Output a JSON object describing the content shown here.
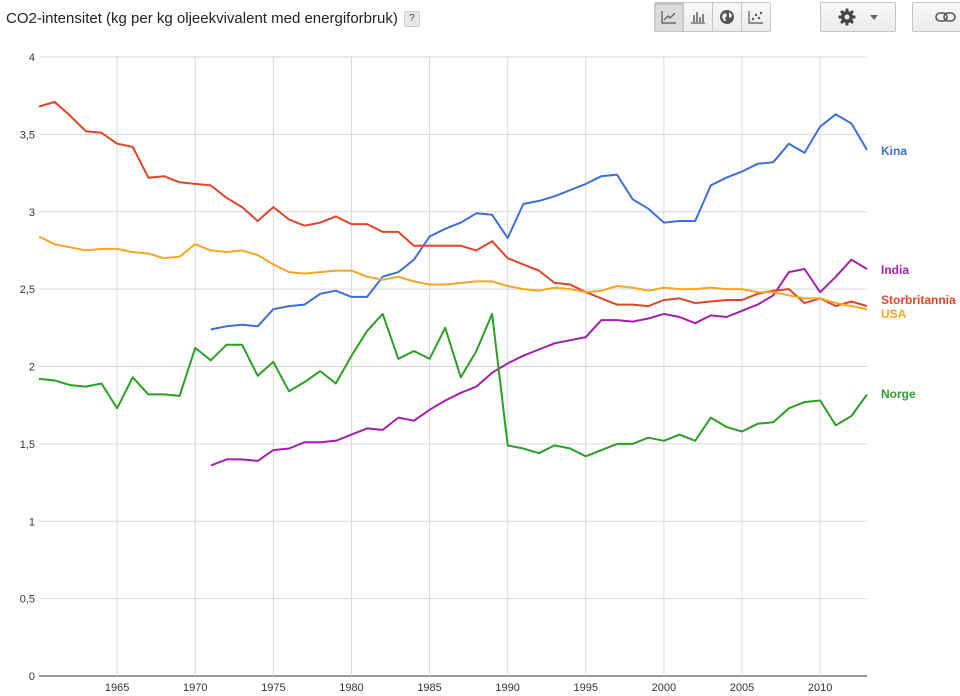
{
  "title": "CO2-intensitet (kg per kg oljeekvivalent med energiforbruk)",
  "help": "?",
  "toolbar": {
    "buttons": [
      {
        "name": "line-chart-button",
        "icon": "line-chart-icon",
        "active": true
      },
      {
        "name": "bar-chart-button",
        "icon": "bar-chart-icon",
        "active": false
      },
      {
        "name": "map-button",
        "icon": "globe-icon",
        "active": false
      },
      {
        "name": "scatter-button",
        "icon": "scatter-icon",
        "active": false
      }
    ],
    "settings_icon": "gear-icon",
    "dropdown_icon": "caret-down-icon",
    "link_icon": "link-icon"
  },
  "chart_data": {
    "type": "line",
    "title": "CO2-intensitet (kg per kg oljeekvivalent med energiforbruk)",
    "xlabel": "",
    "ylabel": "",
    "xlim": [
      1960,
      2013
    ],
    "ylim": [
      0,
      4
    ],
    "yticks": [
      0,
      0.5,
      1,
      1.5,
      2,
      2.5,
      3,
      3.5,
      4
    ],
    "ytick_labels": [
      "0",
      "0,5",
      "1",
      "1,5",
      "2",
      "2,5",
      "3",
      "3,5",
      "4"
    ],
    "xticks": [
      1965,
      1970,
      1975,
      1980,
      1985,
      1990,
      1995,
      2000,
      2005,
      2010
    ],
    "grid": true,
    "legend": "inline-right",
    "series": [
      {
        "name": "Kina",
        "color": "#3d6fd6",
        "x": [
          1971,
          1972,
          1973,
          1974,
          1975,
          1976,
          1977,
          1978,
          1979,
          1980,
          1981,
          1982,
          1983,
          1984,
          1985,
          1986,
          1987,
          1988,
          1989,
          1990,
          1991,
          1992,
          1993,
          1994,
          1995,
          1996,
          1997,
          1998,
          1999,
          2000,
          2001,
          2002,
          2003,
          2004,
          2005,
          2006,
          2007,
          2008,
          2009,
          2010,
          2011,
          2012,
          2013
        ],
        "y": [
          2.24,
          2.26,
          2.27,
          2.26,
          2.37,
          2.39,
          2.4,
          2.47,
          2.49,
          2.45,
          2.45,
          2.58,
          2.61,
          2.69,
          2.84,
          2.89,
          2.93,
          2.99,
          2.98,
          2.83,
          3.05,
          3.07,
          3.1,
          3.14,
          3.18,
          3.23,
          3.24,
          3.08,
          3.02,
          2.93,
          2.94,
          2.94,
          3.17,
          3.22,
          3.26,
          3.31,
          3.32,
          3.44,
          3.38,
          3.55,
          3.63,
          3.57,
          3.4
        ]
      },
      {
        "name": "India",
        "color": "#a21fb0",
        "x": [
          1971,
          1972,
          1973,
          1974,
          1975,
          1976,
          1977,
          1978,
          1979,
          1980,
          1981,
          1982,
          1983,
          1984,
          1985,
          1986,
          1987,
          1988,
          1989,
          1990,
          1991,
          1992,
          1993,
          1994,
          1995,
          1996,
          1997,
          1998,
          1999,
          2000,
          2001,
          2002,
          2003,
          2004,
          2005,
          2006,
          2007,
          2008,
          2009,
          2010,
          2011,
          2012,
          2013
        ],
        "y": [
          1.36,
          1.4,
          1.4,
          1.39,
          1.46,
          1.47,
          1.51,
          1.51,
          1.52,
          1.56,
          1.6,
          1.59,
          1.67,
          1.65,
          1.72,
          1.78,
          1.83,
          1.87,
          1.96,
          2.02,
          2.07,
          2.11,
          2.15,
          2.17,
          2.19,
          2.3,
          2.3,
          2.29,
          2.31,
          2.34,
          2.32,
          2.28,
          2.33,
          2.32,
          2.36,
          2.4,
          2.46,
          2.61,
          2.63,
          2.48,
          2.58,
          2.69,
          2.63
        ]
      },
      {
        "name": "Storbritannia",
        "color": "#e0452a",
        "x": [
          1960,
          1961,
          1962,
          1963,
          1964,
          1965,
          1966,
          1967,
          1968,
          1969,
          1970,
          1971,
          1972,
          1973,
          1974,
          1975,
          1976,
          1977,
          1978,
          1979,
          1980,
          1981,
          1982,
          1983,
          1984,
          1985,
          1986,
          1987,
          1988,
          1989,
          1990,
          1991,
          1992,
          1993,
          1994,
          1995,
          1996,
          1997,
          1998,
          1999,
          2000,
          2001,
          2002,
          2003,
          2004,
          2005,
          2006,
          2007,
          2008,
          2009,
          2010,
          2011,
          2012,
          2013
        ],
        "y": [
          3.68,
          3.71,
          3.62,
          3.52,
          3.51,
          3.44,
          3.42,
          3.22,
          3.23,
          3.19,
          3.18,
          3.17,
          3.09,
          3.03,
          2.94,
          3.03,
          2.95,
          2.91,
          2.93,
          2.97,
          2.92,
          2.92,
          2.87,
          2.87,
          2.78,
          2.78,
          2.78,
          2.78,
          2.75,
          2.81,
          2.7,
          2.66,
          2.62,
          2.54,
          2.53,
          2.48,
          2.44,
          2.4,
          2.4,
          2.39,
          2.43,
          2.44,
          2.41,
          2.42,
          2.43,
          2.43,
          2.47,
          2.49,
          2.5,
          2.41,
          2.44,
          2.39,
          2.42,
          2.39
        ]
      },
      {
        "name": "USA",
        "color": "#f6a623",
        "x": [
          1960,
          1961,
          1962,
          1963,
          1964,
          1965,
          1966,
          1967,
          1968,
          1969,
          1970,
          1971,
          1972,
          1973,
          1974,
          1975,
          1976,
          1977,
          1978,
          1979,
          1980,
          1981,
          1982,
          1983,
          1984,
          1985,
          1986,
          1987,
          1988,
          1989,
          1990,
          1991,
          1992,
          1993,
          1994,
          1995,
          1996,
          1997,
          1998,
          1999,
          2000,
          2001,
          2002,
          2003,
          2004,
          2005,
          2006,
          2007,
          2008,
          2009,
          2010,
          2011,
          2012,
          2013
        ],
        "y": [
          2.84,
          2.79,
          2.77,
          2.75,
          2.76,
          2.76,
          2.74,
          2.73,
          2.7,
          2.71,
          2.79,
          2.75,
          2.74,
          2.75,
          2.72,
          2.66,
          2.61,
          2.6,
          2.61,
          2.62,
          2.62,
          2.58,
          2.56,
          2.58,
          2.55,
          2.53,
          2.53,
          2.54,
          2.55,
          2.55,
          2.52,
          2.5,
          2.49,
          2.51,
          2.5,
          2.48,
          2.49,
          2.52,
          2.51,
          2.49,
          2.51,
          2.5,
          2.5,
          2.51,
          2.5,
          2.5,
          2.48,
          2.48,
          2.46,
          2.44,
          2.44,
          2.41,
          2.39,
          2.37
        ]
      },
      {
        "name": "Norge",
        "color": "#2c9f26",
        "x": [
          1960,
          1961,
          1962,
          1963,
          1964,
          1965,
          1966,
          1967,
          1968,
          1969,
          1970,
          1971,
          1972,
          1973,
          1974,
          1975,
          1976,
          1977,
          1978,
          1979,
          1980,
          1981,
          1982,
          1983,
          1984,
          1985,
          1986,
          1987,
          1988,
          1989,
          1990,
          1991,
          1992,
          1993,
          1994,
          1995,
          1996,
          1997,
          1998,
          1999,
          2000,
          2001,
          2002,
          2003,
          2004,
          2005,
          2006,
          2007,
          2008,
          2009,
          2010,
          2011,
          2012,
          2013
        ],
        "y": [
          1.92,
          1.91,
          1.88,
          1.87,
          1.89,
          1.73,
          1.93,
          1.82,
          1.82,
          1.81,
          2.12,
          2.04,
          2.14,
          2.14,
          1.94,
          2.03,
          1.84,
          1.9,
          1.97,
          1.89,
          2.07,
          2.23,
          2.34,
          2.05,
          2.1,
          2.05,
          2.25,
          1.93,
          2.1,
          2.34,
          1.49,
          1.47,
          1.44,
          1.49,
          1.47,
          1.42,
          1.46,
          1.5,
          1.5,
          1.54,
          1.52,
          1.56,
          1.52,
          1.67,
          1.61,
          1.58,
          1.63,
          1.64,
          1.73,
          1.77,
          1.78,
          1.62,
          1.68,
          1.82
        ]
      }
    ]
  }
}
